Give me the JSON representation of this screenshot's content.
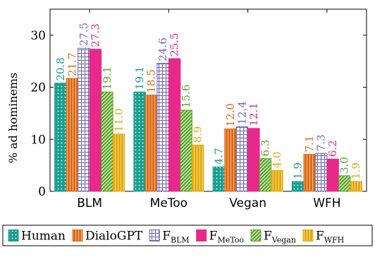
{
  "chart_data": {
    "type": "bar",
    "categories": [
      "BLM",
      "MeToo",
      "Vegan",
      "WFH"
    ],
    "ylabel": "% ad hominems",
    "xlabel": "",
    "ylim": [
      0,
      35
    ],
    "yticks": [
      0,
      10,
      20,
      30
    ],
    "grid": false,
    "legend_position": "bottom",
    "series": [
      {
        "name": "Human",
        "values": [
          20.8,
          19.1,
          4.7,
          1.9
        ],
        "labels": [
          "20.8",
          "19.1",
          "4.7",
          "1.9"
        ],
        "color": "#1a9e8f",
        "pattern": "dots"
      },
      {
        "name": "DialoGPT",
        "values": [
          21.7,
          18.5,
          12.0,
          7.1
        ],
        "labels": [
          "21.7",
          "18.5",
          "12.0",
          "7.1"
        ],
        "color": "#e06a12",
        "pattern": "vlines"
      },
      {
        "name": "F",
        "sub": "BLM",
        "values": [
          27.5,
          24.6,
          12.4,
          7.3
        ],
        "labels": [
          "27.5",
          "24.6",
          "12.4",
          "7.3"
        ],
        "color": "#6e6bb5",
        "pattern": "grid"
      },
      {
        "name": "F",
        "sub": "MeToo",
        "values": [
          27.3,
          25.5,
          12.1,
          6.2
        ],
        "labels": [
          "27.3",
          "25.5",
          "12.1",
          "6.2"
        ],
        "color": "#e8288a",
        "pattern": "solid"
      },
      {
        "name": "F",
        "sub": "Vegan",
        "values": [
          19.1,
          15.6,
          6.3,
          3.0
        ],
        "labels": [
          "19.1",
          "15.6",
          "6.3",
          "3.0"
        ],
        "color": "#5aa628",
        "pattern": "diag"
      },
      {
        "name": "F",
        "sub": "WFH",
        "values": [
          11.0,
          8.9,
          4.0,
          1.9
        ],
        "labels": [
          "11.0",
          "8.9",
          "4.0",
          "1.9"
        ],
        "color": "#e3aa0a",
        "pattern": "vlines"
      }
    ]
  }
}
